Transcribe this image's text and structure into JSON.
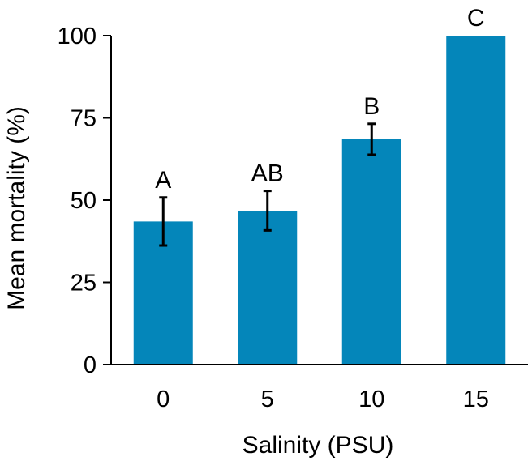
{
  "chart_data": {
    "type": "bar",
    "title": "",
    "xlabel": "Salinity (PSU)",
    "ylabel": "Mean mortality (%)",
    "categories": [
      "0",
      "5",
      "10",
      "15"
    ],
    "values": [
      43.5,
      46.8,
      68.5,
      100
    ],
    "error": [
      7.3,
      6.0,
      4.7,
      0
    ],
    "significance_labels": [
      "A",
      "AB",
      "B",
      "C"
    ],
    "ylim": [
      0,
      100
    ],
    "yticks": [
      "0",
      "25",
      "50",
      "75",
      "100"
    ],
    "ytick_values": [
      0,
      25,
      50,
      75,
      100
    ],
    "grid": false,
    "legend": "none",
    "bar_color": "#0486BA",
    "axis_color": "#000000"
  }
}
